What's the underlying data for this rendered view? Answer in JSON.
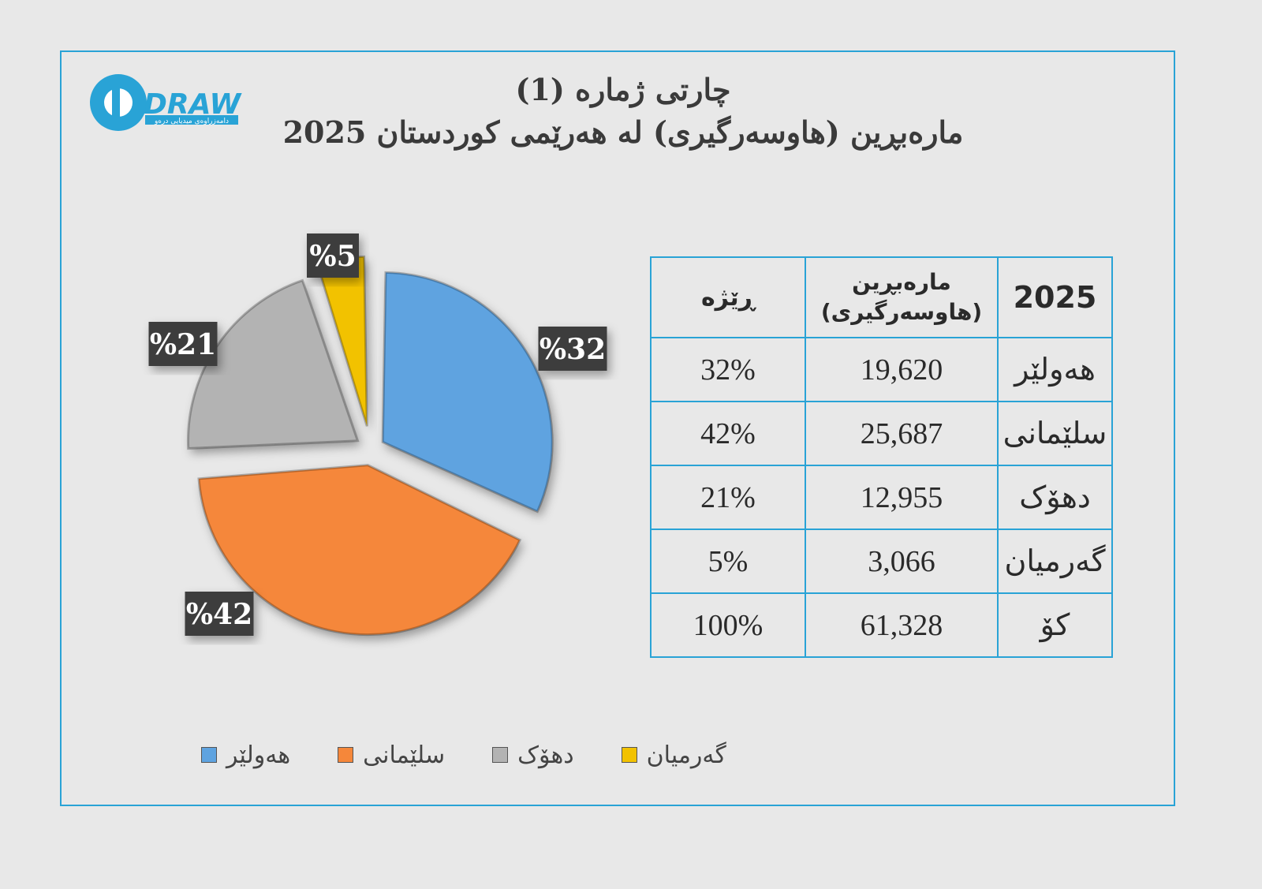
{
  "logo": {
    "text": "DRAW",
    "tagline": "دامەزراوەی میدیایی درەو"
  },
  "title": {
    "line1": "چارتی ژمارە (1)",
    "line2": "مارەبڕین (هاوسەرگیری) لە هەرێمی کوردستان 2025"
  },
  "chart_data": {
    "type": "pie",
    "categories": [
      "هەولێر",
      "سلێمانی",
      "دهۆک",
      "گەرمیان"
    ],
    "values": [
      32,
      42,
      21,
      5
    ],
    "labels": [
      "%32",
      "%42",
      "%21",
      "%5"
    ],
    "colors": [
      "#5ea3e0",
      "#f5873a",
      "#b3b3b3",
      "#f2c200"
    ],
    "legend_position": "bottom",
    "exploded": true
  },
  "table": {
    "headers": {
      "year": "2025",
      "value": [
        "مارەبڕین",
        "(هاوسەرگیری)"
      ],
      "ratio": "ڕێژە"
    },
    "rows": [
      {
        "region": "هەولێر",
        "value": "19,620",
        "ratio": "32%"
      },
      {
        "region": "سلێمانی",
        "value": "25,687",
        "ratio": "42%"
      },
      {
        "region": "دهۆک",
        "value": "12,955",
        "ratio": "21%"
      },
      {
        "region": "گەرمیان",
        "value": "3,066",
        "ratio": "5%"
      },
      {
        "region": "کۆ",
        "value": "61,328",
        "ratio": "100%"
      }
    ]
  }
}
